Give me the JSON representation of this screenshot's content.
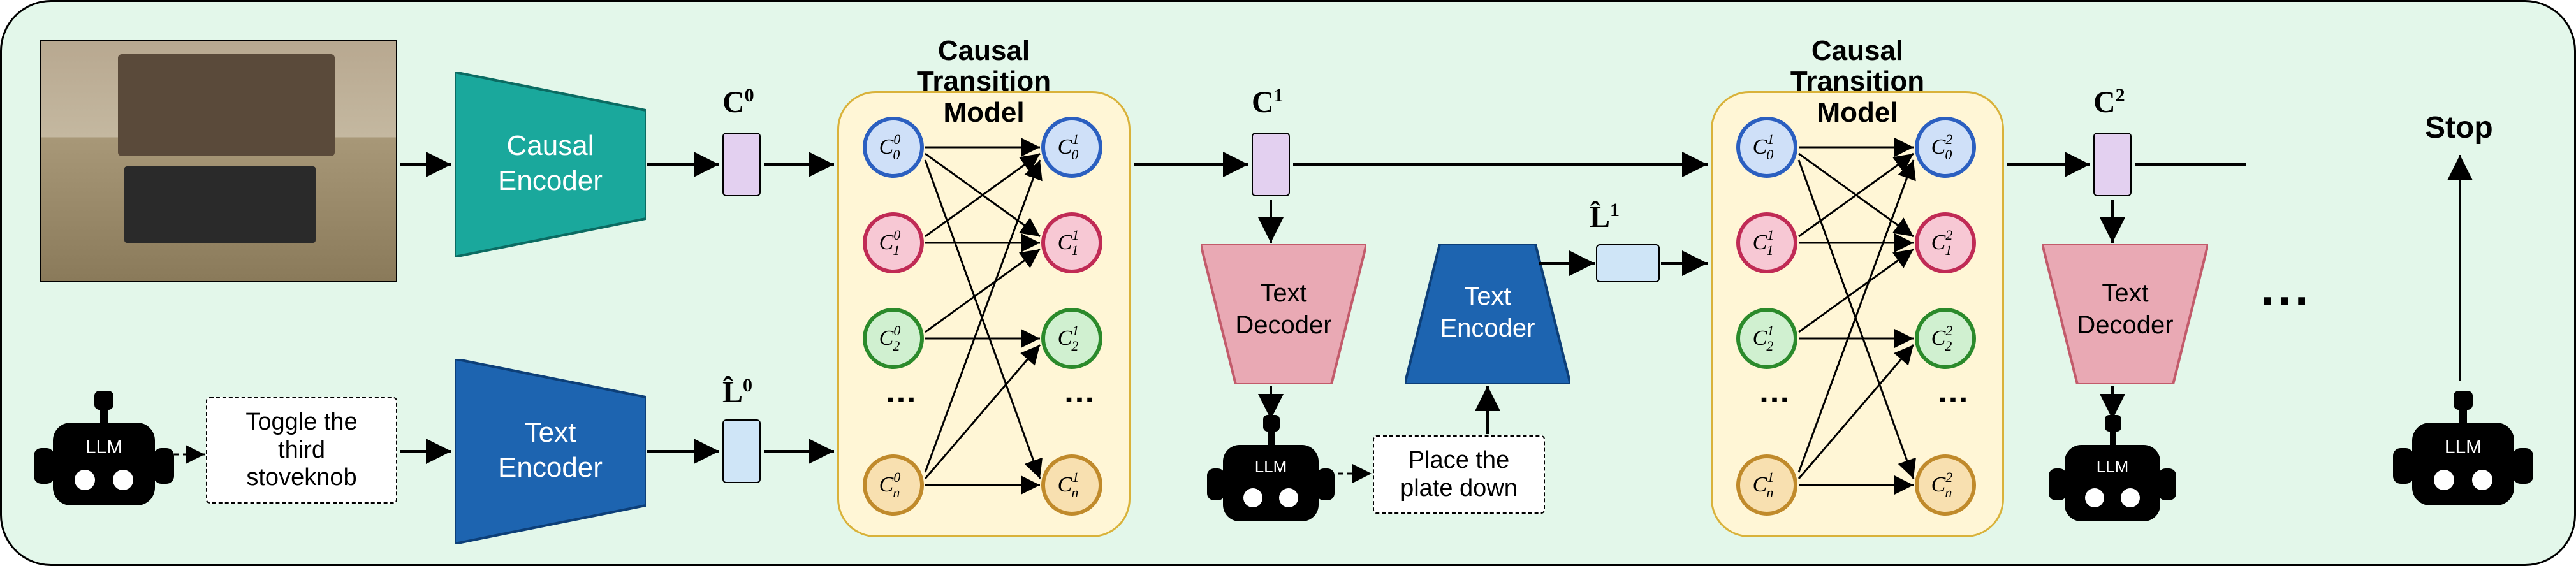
{
  "background_color": "#e3f7ea",
  "image": {
    "alt": "kitchen scene with microwave and stovetop"
  },
  "encoders": {
    "causal": {
      "label": "Causal\nEncoder",
      "fill": "#1aa89c",
      "stroke": "#0b6b62"
    },
    "text": {
      "label": "Text\nEncoder",
      "fill": "#1d64b0",
      "stroke": "#0d3f78"
    },
    "text2": {
      "label": "Text\nEncoder",
      "fill": "#1d64b0",
      "stroke": "#0d3f78"
    },
    "tdec1": {
      "label": "Text\nDecoder",
      "fill": "#e9a9b4",
      "stroke": "#c25b6b"
    },
    "tdec2": {
      "label": "Text\nDecoder",
      "fill": "#e9a9b4",
      "stroke": "#c25b6b"
    }
  },
  "ctm": {
    "title": "Causal\nTransition\nModel",
    "fill": "#fff6d6",
    "stroke": "#d9b23a"
  },
  "vectors": {
    "C0": "C",
    "C0_sup": "0",
    "L0": "L̂",
    "L0_sup": "0",
    "C1": "C",
    "C1_sup": "1",
    "L1": "L̂",
    "L1_sup": "1",
    "C2": "C",
    "C2_sup": "2"
  },
  "node_colors": {
    "row0": {
      "fill": "#cfe0f8",
      "stroke": "#2b5fc0"
    },
    "row1": {
      "fill": "#f7c8d4",
      "stroke": "#c02b55"
    },
    "row2": {
      "fill": "#d0f0d0",
      "stroke": "#2b8a2b"
    },
    "row3": {
      "fill": "#f8e0b0",
      "stroke": "#c08a2b"
    }
  },
  "ctm1_nodes": {
    "l0": "C₀⁰",
    "r0": "C₀¹",
    "l1": "C₁⁰",
    "r1": "C₁¹",
    "l2": "C₂⁰",
    "r2": "C₂¹",
    "l3": "Cₙ⁰",
    "r3": "Cₙ¹"
  },
  "ctm2_nodes": {
    "l0": "C₀¹",
    "r0": "C₀²",
    "l1": "C₁¹",
    "r1": "C₁²",
    "l2": "C₂¹",
    "r2": "C₂²",
    "l3": "Cₙ¹",
    "r3": "Cₙ²"
  },
  "llm_label": "LLM",
  "speech1": "Toggle the\nthird\nstoveknob",
  "speech2": "Place the\nplate down",
  "stop": "Stop",
  "ellipsis": "⋯",
  "vdots": "⋮",
  "token_colors": {
    "c": "#e3d0f0",
    "l": "#cfe5f7"
  },
  "arrow_color": "#000000"
}
